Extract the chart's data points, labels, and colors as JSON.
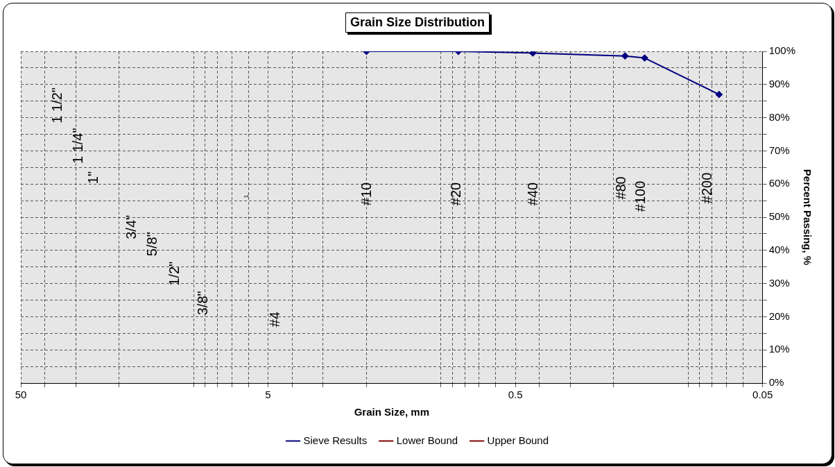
{
  "chart_data": {
    "type": "line",
    "title": "Grain Size Distribution",
    "xlabel": "Grain Size, mm",
    "ylabel": "Percent Passing, %",
    "x": [
      2.0,
      0.85,
      0.425,
      0.18,
      0.15,
      0.075
    ],
    "series": [
      {
        "name": "Sieve Results",
        "color": "#000080",
        "values": [
          100,
          100,
          99.5,
          98.6,
          98,
          87
        ]
      },
      {
        "name": "Lower Bound",
        "color": "#800000",
        "values": [
          null,
          null,
          null,
          null,
          null,
          null
        ]
      },
      {
        "name": "Upper Bound",
        "color": "#800000",
        "values": [
          null,
          null,
          null,
          null,
          null,
          null
        ]
      }
    ],
    "log": "x",
    "xlim": [
      50,
      0.05
    ],
    "xticks": [
      50,
      {
        "value": 40,
        "label": null
      },
      {
        "value": 30,
        "label": null
      },
      {
        "value": 20,
        "label": null
      },
      {
        "value": 10,
        "label": null
      },
      {
        "value": 9,
        "label": null
      },
      {
        "value": 8,
        "label": null
      },
      {
        "value": 7,
        "label": null
      },
      {
        "value": 6,
        "label": null
      },
      5,
      {
        "value": 4,
        "label": null
      },
      {
        "value": 3,
        "label": null
      },
      {
        "value": 2,
        "label": null
      },
      {
        "value": 1,
        "label": null
      },
      {
        "value": 0.9,
        "label": null
      },
      {
        "value": 0.8,
        "label": null
      },
      {
        "value": 0.7,
        "label": null
      },
      {
        "value": 0.6,
        "label": null
      },
      0.5,
      {
        "value": 0.4,
        "label": null
      },
      {
        "value": 0.3,
        "label": null
      },
      {
        "value": 0.2,
        "label": null
      },
      {
        "value": 0.1,
        "label": null
      },
      {
        "value": 0.09,
        "label": null
      },
      {
        "value": 0.08,
        "label": null
      },
      {
        "value": 0.07,
        "label": null
      },
      {
        "value": 0.06,
        "label": null
      },
      0.05
    ],
    "ylim": [
      0,
      100
    ],
    "yticks": [
      {
        "value": 0,
        "label": "0%"
      },
      {
        "value": 5,
        "label": null
      },
      {
        "value": 10,
        "label": "10%"
      },
      {
        "value": 15,
        "label": null
      },
      {
        "value": 20,
        "label": "20%"
      },
      {
        "value": 25,
        "label": null
      },
      {
        "value": 30,
        "label": "30%"
      },
      {
        "value": 35,
        "label": null
      },
      {
        "value": 40,
        "label": "40%"
      },
      {
        "value": 45,
        "label": null
      },
      {
        "value": 50,
        "label": "50%"
      },
      {
        "value": 55,
        "label": null
      },
      {
        "value": 60,
        "label": "60%"
      },
      {
        "value": 65,
        "label": null
      },
      {
        "value": 70,
        "label": "70%"
      },
      {
        "value": 75,
        "label": null
      },
      {
        "value": 80,
        "label": "80%"
      },
      {
        "value": 85,
        "label": null
      },
      {
        "value": 90,
        "label": "90%"
      },
      {
        "value": 95,
        "label": null
      },
      {
        "value": 100,
        "label": "100%"
      }
    ],
    "grid": true,
    "legend": "bottom",
    "marker": "diamond",
    "line_style": "solid",
    "annotations": [
      "1 1/2\"",
      "1 1/4\"",
      "1\"",
      "3/4\"",
      "5/8\"",
      "1/2\"",
      "3/8\"",
      "1",
      "#4",
      "#10",
      "#20",
      "#40",
      "#80",
      "#100",
      "#200"
    ]
  }
}
